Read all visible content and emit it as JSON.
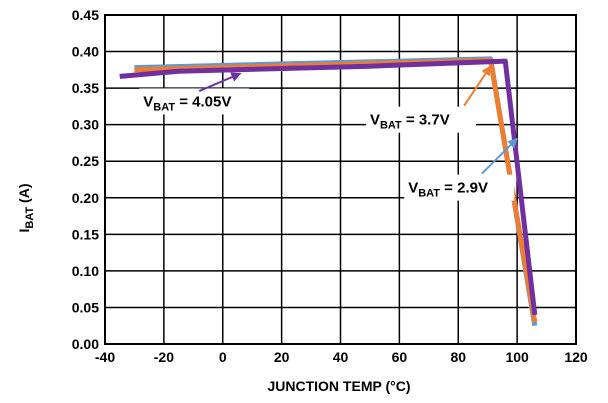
{
  "chart_data": {
    "type": "line",
    "xlabel": "JUNCTION TEMP (°C)",
    "ylabel": {
      "main": "I",
      "sub": "BAT",
      "unit": " (A)"
    },
    "xlim": [
      -40,
      120
    ],
    "ylim": [
      0,
      0.45
    ],
    "grid": true,
    "x_ticks": [
      "-40",
      "-20",
      "0",
      "20",
      "40",
      "60",
      "80",
      "100",
      "120"
    ],
    "y_ticks": [
      "0.00",
      "0.05",
      "0.10",
      "0.15",
      "0.20",
      "0.25",
      "0.30",
      "0.35",
      "0.40",
      "0.45"
    ],
    "series": [
      {
        "id": "vbat-2.9",
        "color": "#5b9bd5",
        "points": [
          [
            -30,
            0.378
          ],
          [
            91,
            0.39
          ],
          [
            106,
            0.025
          ]
        ]
      },
      {
        "id": "vbat-3.7",
        "color": "#ed7d31",
        "points": [
          [
            -30,
            0.375
          ],
          [
            91,
            0.388
          ],
          [
            106,
            0.03
          ]
        ]
      },
      {
        "id": "vbat-4.05",
        "color": "#7030a0",
        "points": [
          [
            -35,
            0.366
          ],
          [
            -15,
            0.373
          ],
          [
            50,
            0.38
          ],
          [
            96,
            0.387
          ],
          [
            106,
            0.04
          ]
        ]
      }
    ],
    "annotations": [
      {
        "id": "vbat-4.05",
        "main": "V",
        "sub": "BAT",
        "rest": " = 4.05V",
        "color": "#7030a0",
        "label_at": [
          -27,
          0.325
        ],
        "arrow_from": [
          -8,
          0.346
        ],
        "arrow_to": [
          6,
          0.37
        ]
      },
      {
        "id": "vbat-3.7",
        "main": "V",
        "sub": "BAT",
        "rest": " = 3.7V",
        "color": "#ed7d31",
        "label_at": [
          50,
          0.3
        ],
        "arrow_from": [
          82,
          0.326
        ],
        "arrow_to": [
          91,
          0.38
        ]
      },
      {
        "id": "vbat-2.9",
        "main": "V",
        "sub": "BAT",
        "rest": " = 2.9V",
        "color": "#5b9bd5",
        "label_at": [
          63,
          0.207
        ],
        "arrow_from": [
          88,
          0.233
        ],
        "arrow_to": [
          100,
          0.281
        ]
      }
    ]
  }
}
